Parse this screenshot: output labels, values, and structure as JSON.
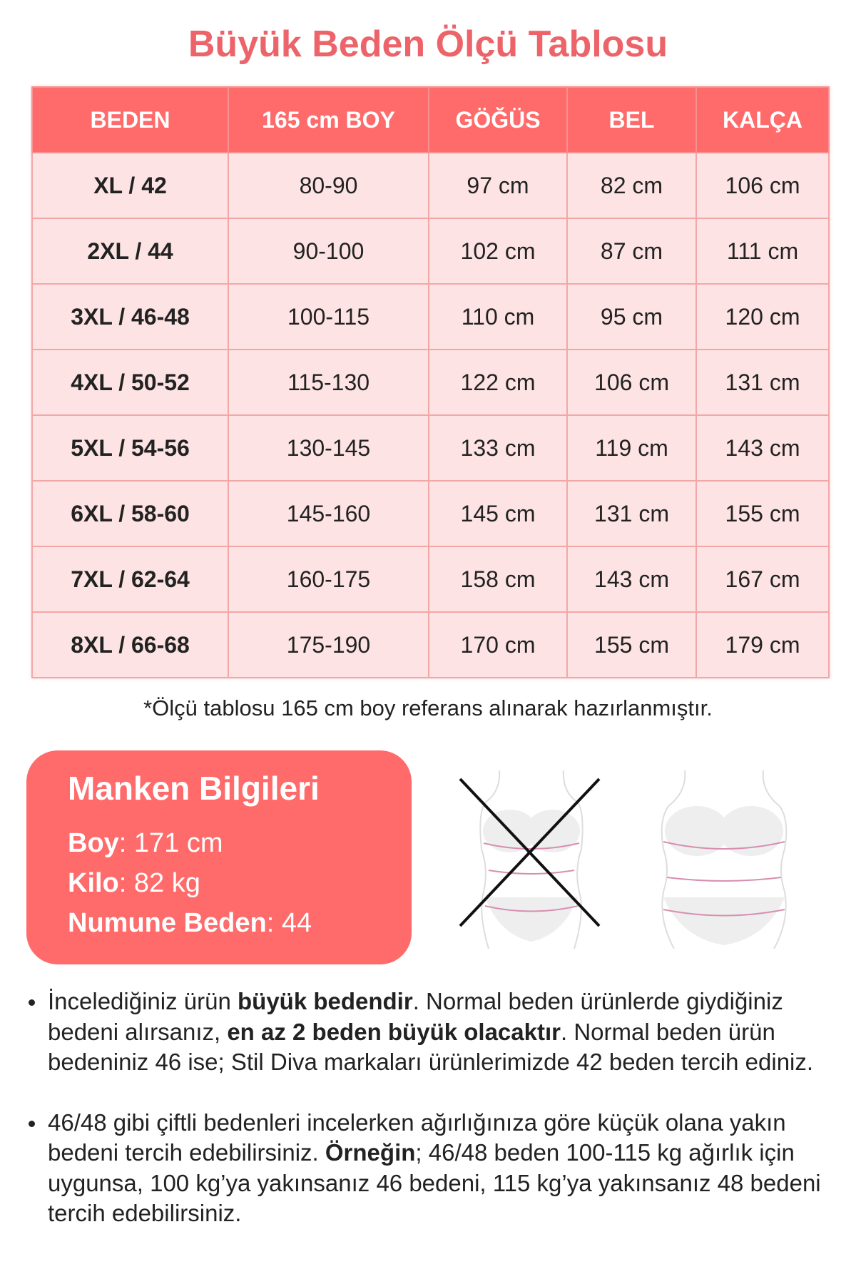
{
  "title": "Büyük Beden Ölçü Tablosu",
  "colors": {
    "accent": "#ff6b6b",
    "title": "#ec6469",
    "cell_bg": "#fde3e3"
  },
  "table": {
    "headers": [
      "BEDEN",
      "165 cm BOY",
      "GÖĞÜS",
      "BEL",
      "KALÇA"
    ],
    "rows": [
      [
        "XL / 42",
        "80-90",
        "97 cm",
        "82 cm",
        "106 cm"
      ],
      [
        "2XL / 44",
        "90-100",
        "102 cm",
        "87 cm",
        "111 cm"
      ],
      [
        "3XL / 46-48",
        "100-115",
        "110 cm",
        "95 cm",
        "120 cm"
      ],
      [
        "4XL / 50-52",
        "115-130",
        "122 cm",
        "106 cm",
        "131 cm"
      ],
      [
        "5XL / 54-56",
        "130-145",
        "133 cm",
        "119 cm",
        "143 cm"
      ],
      [
        "6XL / 58-60",
        "145-160",
        "145 cm",
        "131 cm",
        "155 cm"
      ],
      [
        "7XL / 62-64",
        "160-175",
        "158 cm",
        "143 cm",
        "167 cm"
      ],
      [
        "8XL / 66-68",
        "175-190",
        "170 cm",
        "155 cm",
        "179 cm"
      ]
    ]
  },
  "note": "*Ölçü tablosu 165 cm boy referans alınarak hazırlanmıştır.",
  "model": {
    "title": "Manken Bilgileri",
    "items": [
      {
        "label": "Boy",
        "value": ": 171 cm"
      },
      {
        "label": "Kilo",
        "value": ": 82 kg"
      },
      {
        "label": "Numune Beden",
        "value": ": 44"
      }
    ]
  },
  "figures": {
    "left": "body-shape-crossed-icon",
    "right": "body-shape-icon"
  },
  "bullets": [
    [
      {
        "t": "İncelediğiniz ürün ",
        "b": false
      },
      {
        "t": "büyük bedendir",
        "b": true
      },
      {
        "t": ". Normal beden ürünlerde giydiğiniz bedeni alırsanız, ",
        "b": false
      },
      {
        "t": "en az 2 beden büyük olacaktır",
        "b": true
      },
      {
        "t": ". Normal beden ürün bedeniniz 46 ise; Stil Diva markaları ürünlerimizde 42 beden tercih ediniz.",
        "b": false
      }
    ],
    [
      {
        "t": "46/48 gibi çiftli bedenleri incelerken ağırlığınıza göre küçük olana yakın bedeni tercih edebilirsiniz. ",
        "b": false
      },
      {
        "t": "Örneğin",
        "b": true
      },
      {
        "t": "; 46/48 beden 100-115 kg ağırlık için uygunsa, 100 kg’ya yakınsanız 46 bedeni, 115 kg’ya yakınsanız 48 bedeni tercih edebilirsiniz.",
        "b": false
      }
    ]
  ]
}
